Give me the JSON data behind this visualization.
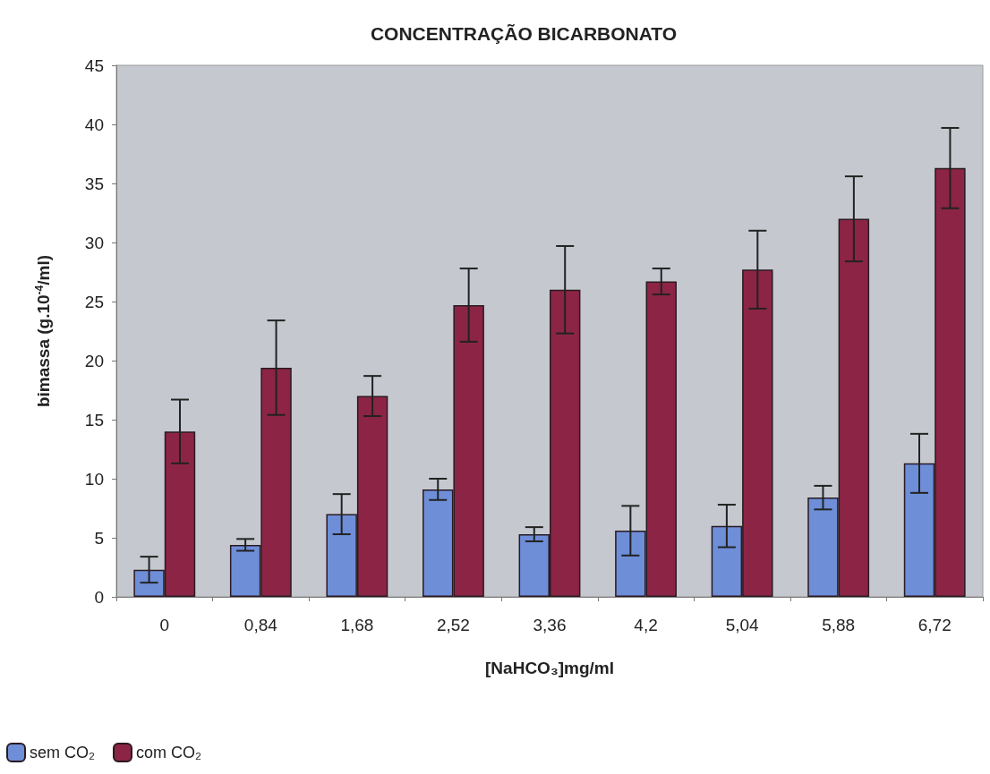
{
  "chart_data": {
    "type": "bar",
    "title": "CONCENTRAÇÃO BICARBONATO",
    "xlabel": "[NaHCO₃]mg/ml",
    "ylabel": "bimassa (g.10$^{-4}$/ml)",
    "categories": [
      "0",
      "0,84",
      "1,68",
      "2,52",
      "3,36",
      "4,2",
      "5,04",
      "5,88",
      "6,72"
    ],
    "series": [
      {
        "name": "sem CO₂",
        "color": "#6e8ed8",
        "values": [
          2.3,
          4.4,
          7.0,
          9.1,
          5.3,
          5.6,
          6.0,
          8.4,
          11.3
        ],
        "errors": [
          1.1,
          0.5,
          1.7,
          0.9,
          0.6,
          2.1,
          1.8,
          1.0,
          2.5
        ]
      },
      {
        "name": "com CO₂",
        "color": "#8c2545",
        "values": [
          14.0,
          19.4,
          17.0,
          24.7,
          26.0,
          26.7,
          27.7,
          32.0,
          36.3
        ],
        "errors": [
          2.7,
          4.0,
          1.7,
          3.1,
          3.7,
          1.1,
          3.3,
          3.6,
          3.4
        ]
      }
    ],
    "ylim": [
      0,
      45
    ],
    "yticks": [
      0,
      5,
      10,
      15,
      20,
      25,
      30,
      35,
      40,
      45
    ],
    "grid": false,
    "legend": "bottom left"
  }
}
